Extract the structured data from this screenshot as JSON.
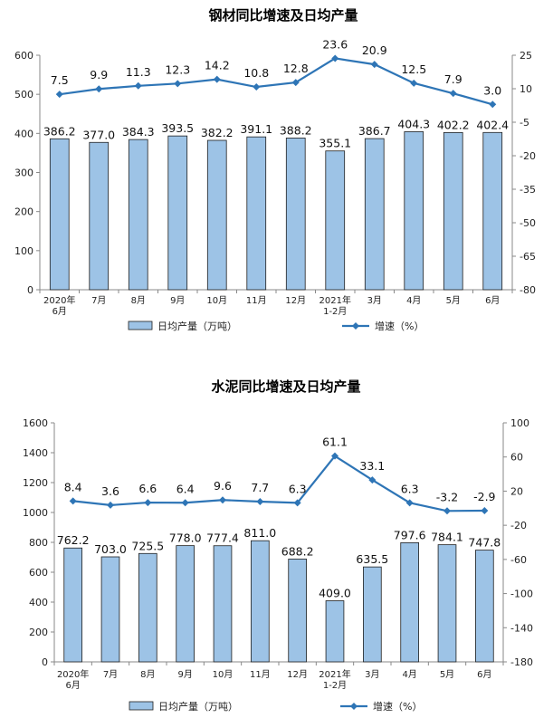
{
  "chart_data": [
    {
      "type": "bar",
      "title": "钢材同比增速及日均产量",
      "categories": [
        "2020年\n6月",
        "7月",
        "8月",
        "9月",
        "10月",
        "11月",
        "12月",
        "2021年\n1-2月",
        "3月",
        "4月",
        "5月",
        "6月"
      ],
      "series": [
        {
          "name": "日均产量（万吨）",
          "type": "bar",
          "axis": "left",
          "values": [
            386.2,
            377.0,
            384.3,
            393.5,
            382.2,
            391.1,
            388.2,
            355.1,
            386.7,
            404.3,
            402.2,
            402.4
          ],
          "labels": [
            "386.2",
            "377.0",
            "384.3",
            "393.5",
            "382.2",
            "391.1",
            "388.2",
            "355.1",
            "386.7",
            "404.3",
            "402.2",
            "402.4"
          ]
        },
        {
          "name": "增速（%）",
          "type": "line",
          "axis": "right",
          "values": [
            7.5,
            9.9,
            11.3,
            12.3,
            14.2,
            10.8,
            12.8,
            23.6,
            20.9,
            12.5,
            7.9,
            3.0
          ],
          "labels": [
            "7.5",
            "9.9",
            "11.3",
            "12.3",
            "14.2",
            "10.8",
            "12.8",
            "23.6",
            "20.9",
            "12.5",
            "7.9",
            "3.0"
          ]
        }
      ],
      "ylim_left": [
        0,
        600
      ],
      "yticks_left": [
        "0",
        "100",
        "200",
        "300",
        "400",
        "500",
        "600"
      ],
      "ylim_right": [
        -80,
        25
      ],
      "yticks_right": [
        "-80",
        "-65",
        "-50",
        "-35",
        "-20",
        "-5",
        "10",
        "25"
      ],
      "legend_position": "bottom",
      "bar_color": "#9DC3E6",
      "bar_edge": "#1F1F1F",
      "line_color": "#2E75B6"
    },
    {
      "type": "bar",
      "title": "水泥同比增速及日均产量",
      "categories": [
        "2020年\n6月",
        "7月",
        "8月",
        "9月",
        "10月",
        "11月",
        "12月",
        "2021年\n1-2月",
        "3月",
        "4月",
        "5月",
        "6月"
      ],
      "series": [
        {
          "name": "日均产量（万吨）",
          "type": "bar",
          "axis": "left",
          "values": [
            762.2,
            703.0,
            725.5,
            778.0,
            777.4,
            811.0,
            688.2,
            409.0,
            635.5,
            797.6,
            784.1,
            747.8
          ],
          "labels": [
            "762.2",
            "703.0",
            "725.5",
            "778.0",
            "777.4",
            "811.0",
            "688.2",
            "409.0",
            "635.5",
            "797.6",
            "784.1",
            "747.8"
          ]
        },
        {
          "name": "增速（%）",
          "type": "line",
          "axis": "right",
          "values": [
            8.4,
            3.6,
            6.6,
            6.4,
            9.6,
            7.7,
            6.3,
            61.1,
            33.1,
            6.3,
            -3.2,
            -2.9
          ],
          "labels": [
            "8.4",
            "3.6",
            "6.6",
            "6.4",
            "9.6",
            "7.7",
            "6.3",
            "61.1",
            "33.1",
            "6.3",
            "-3.2",
            "-2.9"
          ]
        }
      ],
      "ylim_left": [
        0,
        1600
      ],
      "yticks_left": [
        "0",
        "200",
        "400",
        "600",
        "800",
        "1000",
        "1200",
        "1400",
        "1600"
      ],
      "ylim_right": [
        -180,
        100
      ],
      "yticks_right": [
        "-180",
        "-140",
        "-100",
        "-60",
        "-20",
        "20",
        "60",
        "100"
      ],
      "legend_position": "bottom",
      "bar_color": "#9DC3E6",
      "bar_edge": "#1F1F1F",
      "line_color": "#2E75B6"
    }
  ]
}
